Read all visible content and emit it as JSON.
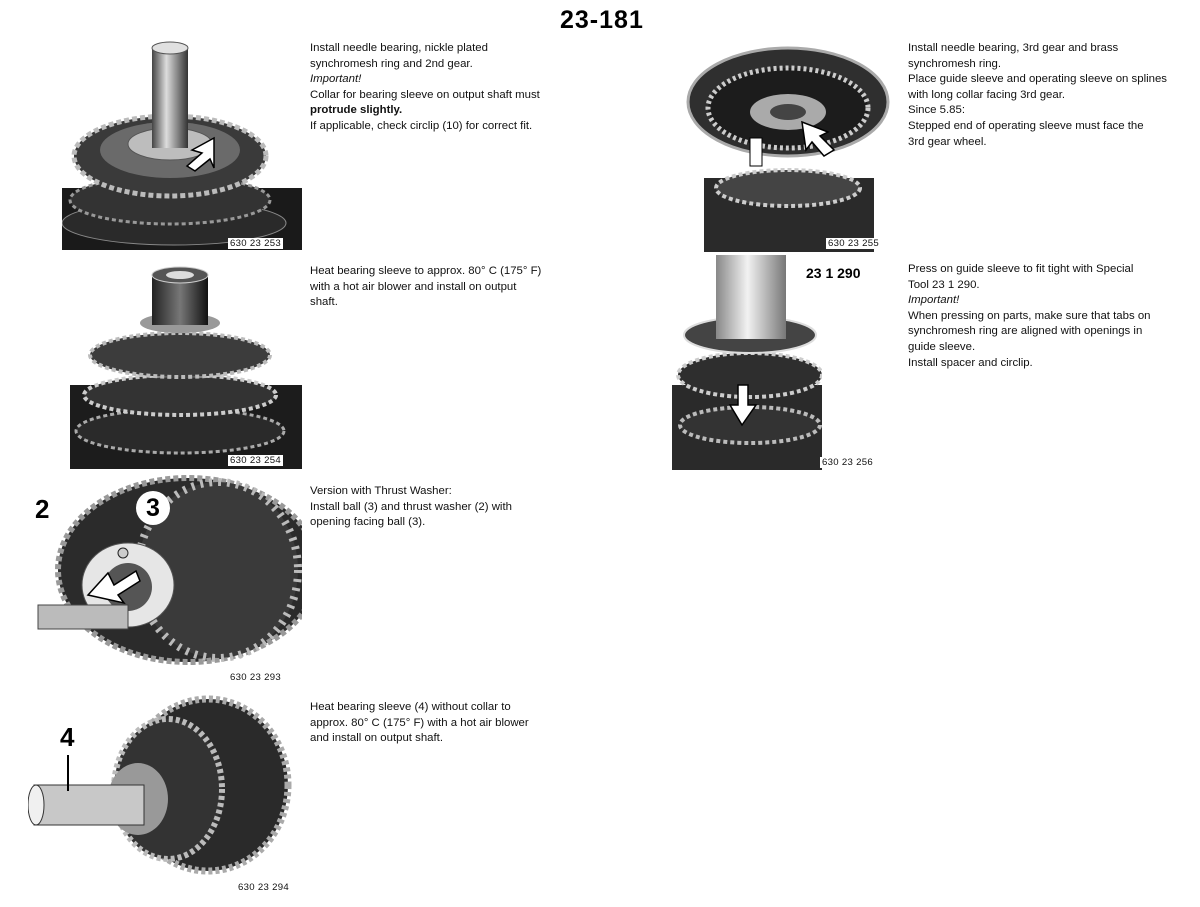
{
  "page_number": "23-181",
  "steps": [
    {
      "id": "s1",
      "figure_id": "630 23 253",
      "lines": [
        {
          "text": "Install needle bearing, nickle plated",
          "style": "normal"
        },
        {
          "text": "synchromesh ring and 2nd gear.",
          "style": "normal"
        },
        {
          "text": "Important!",
          "style": "italic"
        },
        {
          "text": "Collar for bearing sleeve on output shaft must",
          "style": "normal"
        },
        {
          "text": "protrude slightly.",
          "style": "bold"
        },
        {
          "text": "If applicable, check circlip (10) for correct fit.",
          "style": "normal"
        }
      ]
    },
    {
      "id": "s2",
      "figure_id": "630 23 254",
      "lines": [
        {
          "text": "Heat bearing sleeve to approx. 80° C (175° F)",
          "style": "normal"
        },
        {
          "text": "with a hot air blower and install on output",
          "style": "normal"
        },
        {
          "text": "shaft.",
          "style": "normal"
        }
      ]
    },
    {
      "id": "s3",
      "figure_id": "630 23 293",
      "callouts": [
        "2",
        "3"
      ],
      "lines": [
        {
          "text": "Version with Thrust Washer:",
          "style": "normal"
        },
        {
          "text": "Install ball (3) and thrust washer (2) with",
          "style": "normal"
        },
        {
          "text": "opening facing ball (3).",
          "style": "normal"
        }
      ]
    },
    {
      "id": "s4",
      "figure_id": "630 23 294",
      "callouts": [
        "4"
      ],
      "lines": [
        {
          "text": "Heat bearing sleeve (4) without collar to",
          "style": "normal"
        },
        {
          "text": "approx. 80° C (175° F) with a hot air blower",
          "style": "normal"
        },
        {
          "text": "and install on output shaft.",
          "style": "normal"
        }
      ]
    },
    {
      "id": "s5",
      "figure_id": "630 23 255",
      "lines": [
        {
          "text": "Install needle bearing, 3rd gear and brass",
          "style": "normal"
        },
        {
          "text": "synchromesh ring.",
          "style": "normal"
        },
        {
          "text": "Place guide sleeve and operating sleeve on splines",
          "style": "normal"
        },
        {
          "text": "with long collar facing 3rd gear.",
          "style": "normal"
        },
        {
          "text": "Since 5.85:",
          "style": "normal"
        },
        {
          "text": "Stepped end of operating sleeve must face the",
          "style": "normal"
        },
        {
          "text": "3rd gear wheel.",
          "style": "normal"
        }
      ]
    },
    {
      "id": "s6",
      "figure_id": "630 23 256",
      "callouts": [
        "23 1 290"
      ],
      "lines": [
        {
          "text": "Press on guide sleeve to fit tight with Special",
          "style": "normal"
        },
        {
          "text": "Tool 23 1 290.",
          "style": "normal"
        },
        {
          "text": "Important!",
          "style": "italic"
        },
        {
          "text": "When pressing on parts, make sure that tabs on",
          "style": "normal"
        },
        {
          "text": "synchromesh ring are aligned with openings in",
          "style": "normal"
        },
        {
          "text": "guide sleeve.",
          "style": "normal"
        },
        {
          "text": "Install spacer and circlip.",
          "style": "normal"
        }
      ]
    }
  ]
}
